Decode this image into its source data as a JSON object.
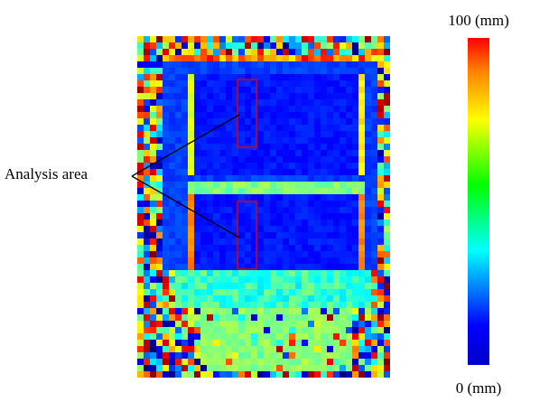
{
  "annotation": "Analysis area",
  "colorbar": {
    "max_label": "100 (mm)",
    "min_label": "0 (mm)"
  }
}
